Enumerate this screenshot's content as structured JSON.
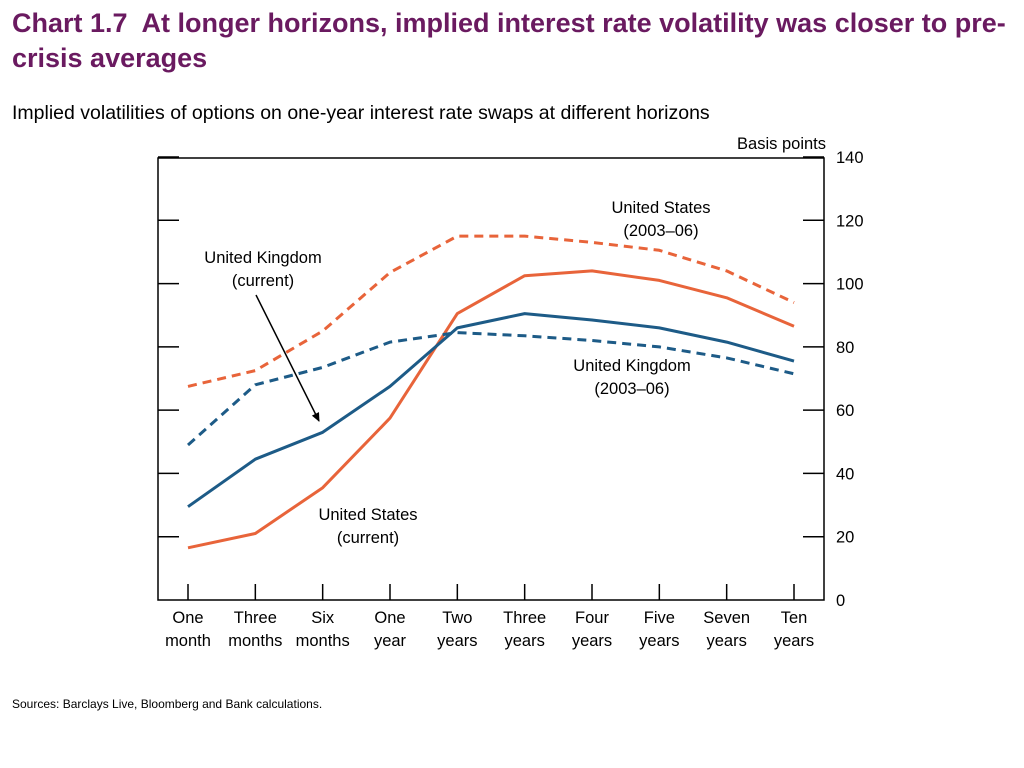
{
  "header": {
    "chart_number": "Chart 1.7",
    "title": "At longer horizons, implied interest rate volatility was closer to pre-crisis averages"
  },
  "subtitle": "Implied volatilities of options on one-year interest rate swaps at different horizons",
  "sources": "Sources:  Barclays Live, Bloomberg and Bank calculations.",
  "colors": {
    "united_states": "#e8643a",
    "united_kingdom": "#1d5b87",
    "axis": "#000000"
  },
  "chart_data": {
    "type": "line",
    "ylabel": "Basis points",
    "ylim": [
      0,
      140
    ],
    "yticks": [
      0,
      20,
      40,
      60,
      80,
      100,
      120,
      140
    ],
    "y_axis_side": "right",
    "grid": false,
    "categories": [
      [
        "One",
        "month"
      ],
      [
        "Three",
        "months"
      ],
      [
        "Six",
        "months"
      ],
      [
        "One",
        "year"
      ],
      [
        "Two",
        "years"
      ],
      [
        "Three",
        "years"
      ],
      [
        "Four",
        "years"
      ],
      [
        "Five",
        "years"
      ],
      [
        "Seven",
        "years"
      ],
      [
        "Ten",
        "years"
      ]
    ],
    "series": [
      {
        "name": "United States (2003–06)",
        "label_lines": [
          "United States",
          "(2003–06)"
        ],
        "color_key": "united_states",
        "dashed": true,
        "values": [
          67.5,
          72.5,
          85,
          103.5,
          115,
          115,
          113,
          110.5,
          104,
          94
        ]
      },
      {
        "name": "United States (current)",
        "label_lines": [
          "United States",
          "(current)"
        ],
        "color_key": "united_states",
        "dashed": false,
        "values": [
          16.5,
          21,
          35.5,
          57.5,
          90.5,
          102.5,
          104,
          101,
          95.5,
          86.5
        ]
      },
      {
        "name": "United Kingdom (2003–06)",
        "label_lines": [
          "United Kingdom",
          "(2003–06)"
        ],
        "color_key": "united_kingdom",
        "dashed": true,
        "values": [
          49,
          68,
          73.5,
          81.5,
          84.5,
          83.5,
          82,
          80,
          76.5,
          71.5
        ]
      },
      {
        "name": "United Kingdom (current)",
        "label_lines": [
          "United Kingdom",
          "(current)"
        ],
        "color_key": "united_kingdom",
        "dashed": false,
        "values": [
          29.5,
          44.5,
          53,
          67.5,
          86,
          90.5,
          88.5,
          86,
          81.5,
          75.5
        ]
      }
    ]
  }
}
